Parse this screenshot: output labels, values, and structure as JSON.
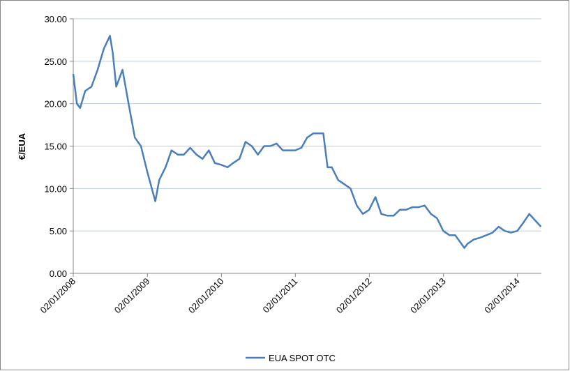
{
  "chart_data": {
    "type": "line",
    "y_label": "€/EUA",
    "x": [
      "2008-01-02",
      "2008-01-20",
      "2008-02-05",
      "2008-03-01",
      "2008-04-01",
      "2008-05-01",
      "2008-06-01",
      "2008-07-01",
      "2008-07-15",
      "2008-08-01",
      "2008-09-01",
      "2008-10-01",
      "2008-11-01",
      "2008-12-01",
      "2009-01-01",
      "2009-02-10",
      "2009-03-01",
      "2009-04-01",
      "2009-05-01",
      "2009-06-01",
      "2009-07-01",
      "2009-08-01",
      "2009-09-01",
      "2009-10-01",
      "2009-11-01",
      "2009-12-01",
      "2010-01-01",
      "2010-02-01",
      "2010-03-01",
      "2010-04-01",
      "2010-05-01",
      "2010-06-01",
      "2010-07-01",
      "2010-08-01",
      "2010-09-01",
      "2010-10-01",
      "2010-11-01",
      "2010-12-01",
      "2011-01-01",
      "2011-02-01",
      "2011-03-01",
      "2011-04-01",
      "2011-05-20",
      "2011-06-10",
      "2011-07-01",
      "2011-08-01",
      "2011-09-01",
      "2011-10-01",
      "2011-11-01",
      "2011-12-01",
      "2012-01-01",
      "2012-02-01",
      "2012-03-01",
      "2012-04-01",
      "2012-05-01",
      "2012-06-01",
      "2012-07-01",
      "2012-08-01",
      "2012-09-01",
      "2012-10-01",
      "2012-11-01",
      "2012-12-01",
      "2013-01-01",
      "2013-02-01",
      "2013-03-01",
      "2013-04-15",
      "2013-05-01",
      "2013-06-01",
      "2013-07-01",
      "2013-08-01",
      "2013-09-01",
      "2013-10-01",
      "2013-11-01",
      "2013-12-01",
      "2014-01-01",
      "2014-02-01",
      "2014-03-01",
      "2014-04-28"
    ],
    "series": [
      {
        "name": "EUA SPOT OTC",
        "color": "#4a7ebb",
        "values": [
          23.5,
          20,
          19.5,
          21.5,
          22,
          24,
          26.5,
          28,
          26,
          22,
          24,
          20,
          16,
          15,
          12,
          8.5,
          11,
          12.5,
          14.5,
          14,
          14,
          14.8,
          14,
          13.5,
          14.5,
          13,
          12.8,
          12.5,
          13,
          13.5,
          15.5,
          15,
          14,
          15,
          15,
          15.3,
          14.5,
          14.5,
          14.5,
          14.8,
          16,
          16.5,
          16.5,
          12.5,
          12.5,
          11,
          10.5,
          10,
          8,
          7,
          7.5,
          9,
          7,
          6.8,
          6.8,
          7.5,
          7.5,
          7.8,
          7.8,
          8,
          7,
          6.5,
          5,
          4.5,
          4.5,
          3,
          3.5,
          4,
          4.2,
          4.5,
          4.8,
          5.5,
          5,
          4.8,
          5,
          6,
          7,
          5.5
        ]
      }
    ],
    "xlim": [
      "2008-01-02",
      "2014-04-30"
    ],
    "xticks": [
      {
        "value": "2008-01-02",
        "label": "02/01/2008"
      },
      {
        "value": "2009-01-02",
        "label": "02/01/2009"
      },
      {
        "value": "2010-01-02",
        "label": "02/01/2010"
      },
      {
        "value": "2011-01-02",
        "label": "02/01/2011"
      },
      {
        "value": "2012-01-02",
        "label": "02/01/2012"
      },
      {
        "value": "2013-01-02",
        "label": "02/01/2013"
      },
      {
        "value": "2014-01-02",
        "label": "02/01/2014"
      }
    ],
    "ylim": [
      0,
      30
    ],
    "yticks": [
      {
        "value": 0,
        "label": "0.00"
      },
      {
        "value": 5,
        "label": "5.00"
      },
      {
        "value": 10,
        "label": "10.00"
      },
      {
        "value": 15,
        "label": "15.00"
      },
      {
        "value": 20,
        "label": "20.00"
      },
      {
        "value": 25,
        "label": "25.00"
      },
      {
        "value": 30,
        "label": "30.00"
      }
    ],
    "grid": true,
    "legend": "bottom"
  }
}
